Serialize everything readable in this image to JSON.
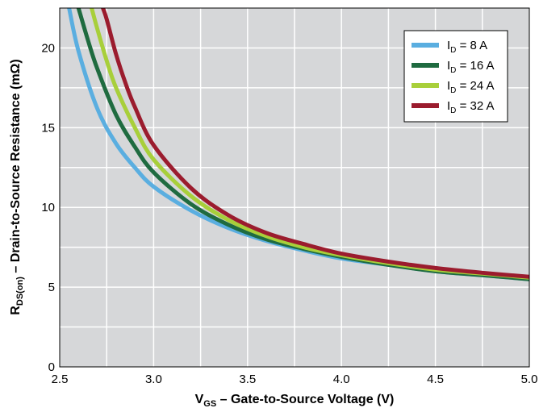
{
  "chart_data": {
    "type": "line",
    "xlabel": {
      "main": "V",
      "sub": "GS",
      "rest": " – Gate-to-Source Voltage (V)"
    },
    "ylabel": {
      "main": "R",
      "sub": "DS(on)",
      "rest": " – Drain-to-Source Resistance (mΩ)"
    },
    "xlim": [
      2.5,
      5.0
    ],
    "ylim": [
      0,
      22.5
    ],
    "x_ticks": [
      "2.5",
      "3.0",
      "3.5",
      "4.0",
      "4.5",
      "5.0"
    ],
    "y_ticks": [
      "0",
      "5",
      "10",
      "15",
      "20"
    ],
    "grid": true,
    "legend_position": "top-right",
    "series": [
      {
        "name": {
          "main": "I",
          "sub": "D",
          "rest": " = 8 A"
        },
        "color": "#5aaee0",
        "x": [
          2.55,
          2.6,
          2.7,
          2.8,
          2.9,
          3.0,
          3.2,
          3.4,
          3.6,
          3.8,
          4.0,
          4.25,
          4.5,
          4.75,
          5.0
        ],
        "y": [
          22.5,
          19.8,
          16.2,
          14.0,
          12.5,
          11.3,
          9.8,
          8.7,
          7.9,
          7.3,
          6.8,
          6.4,
          6.0,
          5.75,
          5.5
        ]
      },
      {
        "name": {
          "main": "I",
          "sub": "D",
          "rest": " = 16 A"
        },
        "color": "#1f6b40",
        "x": [
          2.6,
          2.65,
          2.7,
          2.8,
          2.9,
          3.0,
          3.2,
          3.4,
          3.6,
          3.8,
          4.0,
          4.25,
          4.5,
          4.75,
          5.0
        ],
        "y": [
          22.5,
          20.5,
          18.7,
          15.8,
          13.8,
          12.2,
          10.2,
          8.9,
          8.0,
          7.4,
          6.9,
          6.4,
          6.0,
          5.75,
          5.5
        ]
      },
      {
        "name": {
          "main": "I",
          "sub": "D",
          "rest": " = 24 A"
        },
        "color": "#a8cf3a",
        "x": [
          2.67,
          2.7,
          2.75,
          2.8,
          2.9,
          3.0,
          3.2,
          3.4,
          3.6,
          3.8,
          4.0,
          4.25,
          4.5,
          4.75,
          5.0
        ],
        "y": [
          22.5,
          21.2,
          19.2,
          17.5,
          15.0,
          13.0,
          10.7,
          9.2,
          8.2,
          7.5,
          7.0,
          6.5,
          6.1,
          5.85,
          5.6
        ]
      },
      {
        "name": {
          "main": "I",
          "sub": "D",
          "rest": " = 32 A"
        },
        "color": "#9b1c2e",
        "x": [
          2.73,
          2.75,
          2.8,
          2.85,
          2.9,
          3.0,
          3.2,
          3.4,
          3.6,
          3.8,
          4.0,
          4.25,
          4.5,
          4.75,
          5.0
        ],
        "y": [
          22.5,
          21.8,
          19.6,
          17.8,
          16.3,
          13.9,
          11.2,
          9.5,
          8.4,
          7.7,
          7.1,
          6.6,
          6.2,
          5.9,
          5.65
        ]
      }
    ]
  }
}
